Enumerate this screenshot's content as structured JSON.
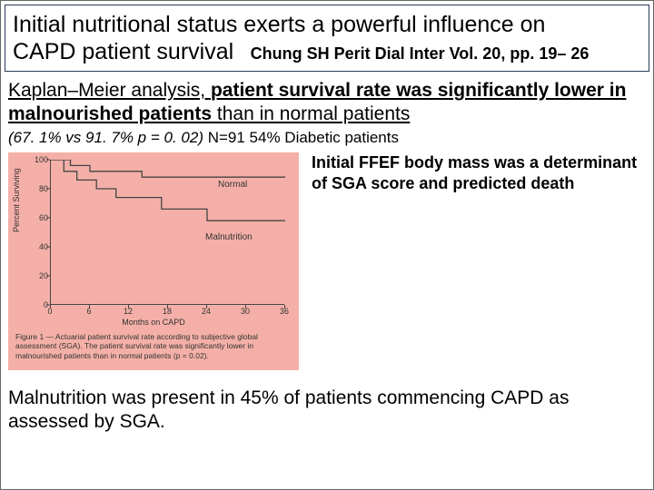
{
  "header": {
    "title_line1": "Initial nutritional status exerts a powerful influence on",
    "title_line2": "CAPD  patient survival",
    "citation": "Chung SH  Perit Dial Inter Vol. 20, pp. 19– 26"
  },
  "body": {
    "km_prefix": "Kaplan–Meier analysis, ",
    "km_bold": "patient survival rate was significantly lower in malnourished patients",
    "km_suffix": " than in normal patients",
    "stats": "(67. 1% vs 91. 7%  p = 0. 02) ",
    "stats_tail": "N=91 54% Diabetic patients"
  },
  "side_note": "Initial FFEF body mass was a determinant of SGA score and predicted death",
  "footer": "Malnutrition was present in 45% of patients commencing CAPD as assessed by SGA.",
  "figure": {
    "background": "#f4b0a8",
    "ylabel": "Percent Surviving",
    "xlabel": "Months on CAPD",
    "y_ticks": [
      0,
      20,
      40,
      60,
      80,
      100
    ],
    "x_ticks": [
      0,
      6,
      12,
      18,
      24,
      30,
      36
    ],
    "ylim": [
      0,
      100
    ],
    "xlim": [
      0,
      36
    ],
    "series": {
      "normal": {
        "label": "Normal",
        "label_xy": [
          225,
          42
        ],
        "points": [
          [
            0,
            100
          ],
          [
            3,
            100
          ],
          [
            3,
            96
          ],
          [
            6,
            96
          ],
          [
            6,
            92
          ],
          [
            14,
            92
          ],
          [
            14,
            88
          ],
          [
            36,
            88
          ]
        ]
      },
      "malnutrition": {
        "label": "Malnutrition",
        "label_xy": [
          215,
          88
        ],
        "points": [
          [
            0,
            100
          ],
          [
            2,
            100
          ],
          [
            2,
            92
          ],
          [
            4,
            92
          ],
          [
            4,
            86
          ],
          [
            7,
            86
          ],
          [
            7,
            80
          ],
          [
            10,
            80
          ],
          [
            10,
            74
          ],
          [
            17,
            74
          ],
          [
            17,
            66
          ],
          [
            24,
            66
          ],
          [
            24,
            58
          ],
          [
            36,
            58
          ]
        ]
      }
    },
    "caption": "Figure 1 — Actuarial patient survival rate according to subjective global assessment (SGA). The patient survival rate was significantly lower in malnourished patients than in normal patients (p = 0.02)."
  }
}
